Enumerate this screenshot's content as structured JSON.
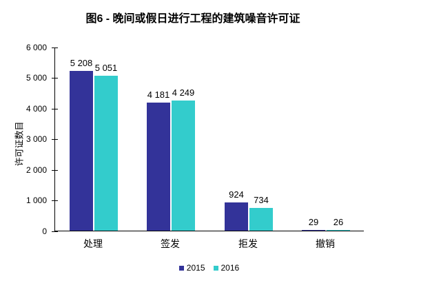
{
  "figure": {
    "background": "#FFFFFF",
    "axis_color": "#000000",
    "text_color": "#000000"
  },
  "chart_data": {
    "type": "bar",
    "title": "图6 - 晚间或假日进行工程的建筑噪音许可证",
    "ylabel": "许可证数目",
    "xlabel": "",
    "categories": [
      "处理",
      "签发",
      "拒发",
      "撤销"
    ],
    "series": [
      {
        "name": "2015",
        "color": "#333399",
        "values": [
          5208,
          4181,
          924,
          29
        ]
      },
      {
        "name": "2016",
        "color": "#33CCCC",
        "values": [
          5051,
          4249,
          734,
          26
        ]
      }
    ],
    "value_labels": [
      [
        "5 208",
        "4 181",
        "924",
        "29"
      ],
      [
        "5 051",
        "4 249",
        "734",
        "26"
      ]
    ],
    "ylim": [
      0,
      6000
    ],
    "ytick_step": 1000,
    "ytick_labels": [
      "0",
      "1 000",
      "2 000",
      "3 000",
      "4 000",
      "5 000",
      "6 000"
    ],
    "grid": false,
    "legend_position": "bottom"
  }
}
